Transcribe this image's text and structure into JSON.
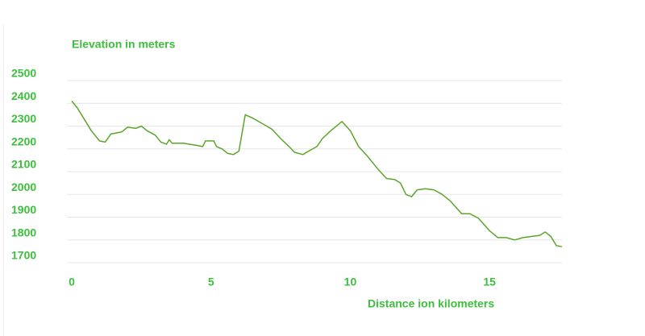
{
  "chart_data": {
    "type": "line",
    "y_label": "Elevation in meters",
    "x_label": "Distance ion kilometers",
    "x": [
      0,
      0.2,
      0.5,
      0.7,
      1.0,
      1.2,
      1.4,
      1.6,
      1.8,
      2.0,
      2.3,
      2.5,
      2.7,
      3.0,
      3.2,
      3.4,
      3.5,
      3.6,
      4.0,
      4.5,
      4.7,
      4.8,
      5.1,
      5.2,
      5.4,
      5.6,
      5.8,
      6.0,
      6.23,
      6.5,
      7.0,
      7.2,
      7.5,
      7.8,
      8.0,
      8.3,
      8.5,
      8.8,
      9.0,
      9.3,
      9.7,
      10.0,
      10.3,
      10.6,
      11.0,
      11.3,
      11.6,
      11.8,
      12.0,
      12.2,
      12.4,
      12.7,
      13.0,
      13.3,
      13.6,
      14.0,
      14.3,
      14.6,
      15.0,
      15.3,
      15.6,
      15.9,
      16.2,
      16.5,
      16.8,
      17.0,
      17.2,
      17.4,
      17.6
    ],
    "values": [
      2410,
      2380,
      2320,
      2280,
      2235,
      2230,
      2265,
      2270,
      2275,
      2295,
      2290,
      2300,
      2280,
      2260,
      2230,
      2220,
      2240,
      2225,
      2225,
      2215,
      2210,
      2235,
      2235,
      2210,
      2200,
      2180,
      2175,
      2190,
      2350,
      2335,
      2300,
      2285,
      2245,
      2210,
      2185,
      2175,
      2190,
      2210,
      2245,
      2280,
      2320,
      2280,
      2210,
      2170,
      2110,
      2070,
      2065,
      2050,
      2000,
      1990,
      2020,
      2025,
      2020,
      2000,
      1970,
      1915,
      1915,
      1895,
      1840,
      1810,
      1810,
      1800,
      1810,
      1815,
      1820,
      1835,
      1815,
      1775,
      1770
    ],
    "color": "#5aa52a",
    "xlim": [
      0,
      17.6
    ],
    "ylim": [
      1700,
      2500
    ],
    "xticks": [
      0,
      5,
      10,
      15
    ],
    "yticks": [
      1700,
      1800,
      1900,
      2000,
      2100,
      2200,
      2300,
      2400,
      2500
    ],
    "grid": true
  }
}
